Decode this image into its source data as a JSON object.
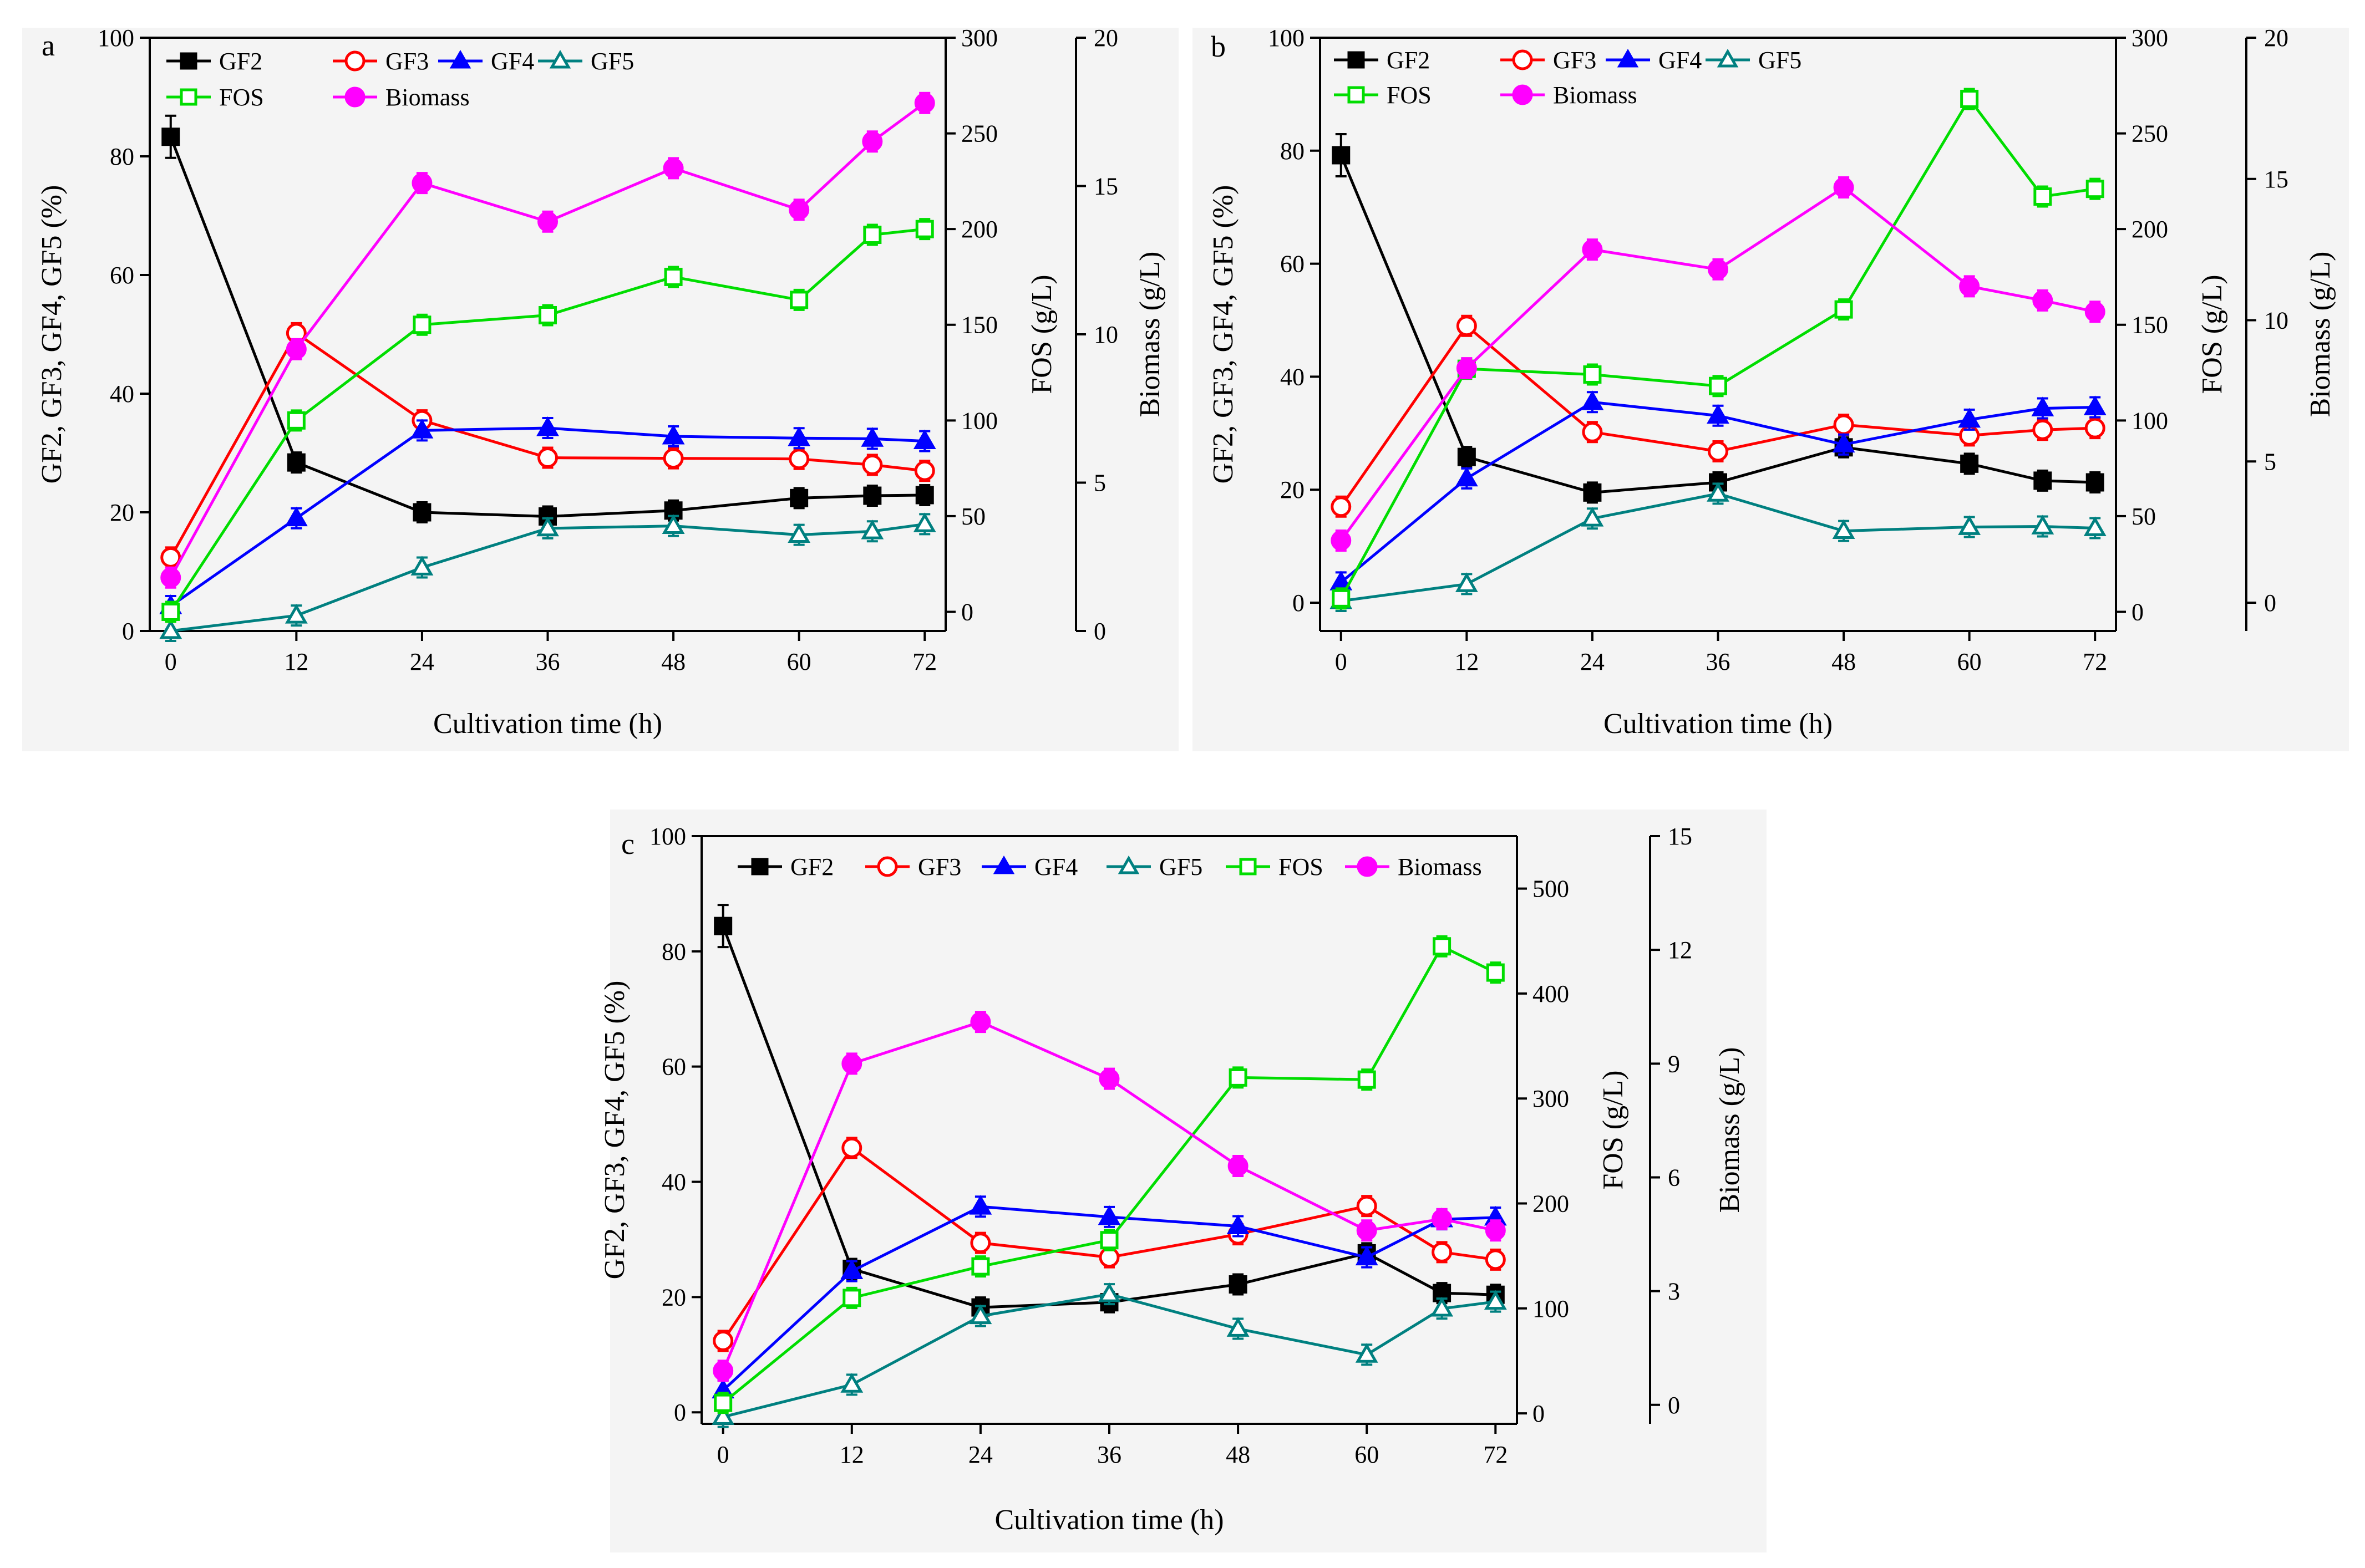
{
  "chart_data": [
    {
      "panel_label": "a",
      "type": "line",
      "xlabel": "Cultivation time (h)",
      "x_ticks": [
        "0",
        "12",
        "24",
        "36",
        "48",
        "60",
        "72"
      ],
      "xlim": [
        -2,
        74
      ],
      "y1label": "GF2, GF3, GF4, GF5 (%)",
      "y1lim": [
        0,
        100
      ],
      "y1_ticks": [
        "0",
        "20",
        "40",
        "60",
        "80",
        "100"
      ],
      "y2label": "FOS (g/L)",
      "y2lim": [
        -10,
        300
      ],
      "y2_ticks": [
        "0",
        "50",
        "100",
        "150",
        "200",
        "250",
        "300"
      ],
      "y3label": "Biomass (g/L)",
      "y3lim": [
        0,
        20
      ],
      "y3_ticks": [
        "0",
        "5",
        "10",
        "15",
        "20"
      ],
      "series": [
        {
          "name": "GF2",
          "axis": "y1",
          "marker": "square",
          "filled": true,
          "color": "#000000",
          "x": [
            0,
            12,
            24,
            36,
            48,
            60,
            67,
            72
          ],
          "y": [
            83.3,
            28.4,
            20.0,
            19.3,
            20.3,
            22.4,
            22.8,
            22.9
          ]
        },
        {
          "name": "GF3",
          "axis": "y1",
          "marker": "circle",
          "filled": false,
          "color": "#FF0000",
          "x": [
            0,
            12,
            24,
            36,
            48,
            60,
            67,
            72
          ],
          "y": [
            12.4,
            50.2,
            35.5,
            29.2,
            29.1,
            29.0,
            28.0,
            27.0
          ]
        },
        {
          "name": "GF4",
          "axis": "y1",
          "marker": "triangle",
          "filled": true,
          "color": "#0000FF",
          "x": [
            0,
            12,
            24,
            36,
            48,
            60,
            67,
            72
          ],
          "y": [
            4.2,
            19.0,
            33.8,
            34.2,
            32.8,
            32.5,
            32.4,
            32.0
          ]
        },
        {
          "name": "GF5",
          "axis": "y1",
          "marker": "triangle",
          "filled": false,
          "color": "#008080",
          "x": [
            0,
            12,
            24,
            36,
            48,
            60,
            67,
            72
          ],
          "y": [
            0.0,
            2.6,
            10.7,
            17.3,
            17.7,
            16.2,
            16.8,
            18.0
          ]
        },
        {
          "name": "FOS",
          "axis": "y2",
          "marker": "square",
          "filled": false,
          "color": "#00DD00",
          "x": [
            0,
            12,
            24,
            36,
            48,
            60,
            67,
            72
          ],
          "y": [
            0,
            100,
            150,
            155,
            175,
            163,
            197,
            200
          ]
        },
        {
          "name": "Biomass",
          "axis": "y3",
          "marker": "circle",
          "filled": true,
          "color": "#FF00FF",
          "x": [
            0,
            12,
            24,
            36,
            48,
            60,
            67,
            72
          ],
          "y": [
            1.8,
            9.5,
            15.1,
            13.8,
            15.6,
            14.2,
            16.5,
            17.8
          ]
        }
      ],
      "legend_rows": [
        [
          "GF2",
          "GF3",
          "GF4",
          "GF5"
        ],
        [
          "FOS",
          "Biomass"
        ]
      ]
    },
    {
      "panel_label": "b",
      "type": "line",
      "xlabel": "Cultivation time (h)",
      "x_ticks": [
        "0",
        "12",
        "24",
        "36",
        "48",
        "60",
        "72"
      ],
      "xlim": [
        -2,
        74
      ],
      "y1label": "GF2, GF3, GF4, GF5 (%)",
      "y1lim": [
        -5,
        100
      ],
      "y1_ticks": [
        "0",
        "20",
        "40",
        "60",
        "80",
        "100"
      ],
      "y2label": "FOS (g/L)",
      "y2lim": [
        -10,
        300
      ],
      "y2_ticks": [
        "0",
        "50",
        "100",
        "150",
        "200",
        "250",
        "300"
      ],
      "y3label": "Biomass (g/L)",
      "y3lim": [
        -1,
        20
      ],
      "y3_ticks": [
        "0",
        "5",
        "10",
        "15",
        "20"
      ],
      "series": [
        {
          "name": "GF2",
          "axis": "y1",
          "marker": "square",
          "filled": true,
          "color": "#000000",
          "x": [
            0,
            12,
            24,
            36,
            48,
            60,
            67,
            72
          ],
          "y": [
            79.2,
            25.8,
            19.5,
            21.3,
            27.5,
            24.6,
            21.6,
            21.3
          ]
        },
        {
          "name": "GF3",
          "axis": "y1",
          "marker": "circle",
          "filled": false,
          "color": "#FF0000",
          "x": [
            0,
            12,
            24,
            36,
            48,
            60,
            67,
            72
          ],
          "y": [
            17.0,
            49.0,
            30.2,
            26.8,
            31.5,
            29.6,
            30.6,
            30.9
          ]
        },
        {
          "name": "GF4",
          "axis": "y1",
          "marker": "triangle",
          "filled": true,
          "color": "#0000FF",
          "x": [
            0,
            12,
            24,
            36,
            48,
            60,
            67,
            72
          ],
          "y": [
            3.6,
            22.0,
            35.5,
            33.1,
            28.0,
            32.4,
            34.4,
            34.6
          ]
        },
        {
          "name": "GF5",
          "axis": "y1",
          "marker": "triangle",
          "filled": false,
          "color": "#008080",
          "x": [
            0,
            12,
            24,
            36,
            48,
            60,
            67,
            72
          ],
          "y": [
            0.3,
            3.3,
            14.9,
            19.3,
            12.7,
            13.4,
            13.5,
            13.2
          ]
        },
        {
          "name": "FOS",
          "axis": "y2",
          "marker": "square",
          "filled": false,
          "color": "#00DD00",
          "x": [
            0,
            12,
            24,
            36,
            48,
            60,
            67,
            72
          ],
          "y": [
            7,
            127,
            124,
            118,
            158,
            268,
            217,
            221
          ]
        },
        {
          "name": "Biomass",
          "axis": "y3",
          "marker": "circle",
          "filled": true,
          "color": "#FF00FF",
          "x": [
            0,
            12,
            24,
            36,
            48,
            60,
            67,
            72
          ],
          "y": [
            2.2,
            8.3,
            12.5,
            11.8,
            14.7,
            11.2,
            10.7,
            10.3
          ]
        }
      ],
      "legend_rows": [
        [
          "GF2",
          "GF3",
          "GF4",
          "GF5"
        ],
        [
          "FOS",
          "Biomass"
        ]
      ]
    },
    {
      "panel_label": "c",
      "type": "line",
      "xlabel": "Cultivation time (h)",
      "x_ticks": [
        "0",
        "12",
        "24",
        "36",
        "48",
        "60",
        "72"
      ],
      "xlim": [
        -2,
        74
      ],
      "y1label": "GF2, GF3, GF4, GF5 (%)",
      "y1lim": [
        -2,
        100
      ],
      "y1_ticks": [
        "0",
        "20",
        "40",
        "60",
        "80",
        "100"
      ],
      "y2label": "FOS (g/L)",
      "y2lim": [
        -10,
        550
      ],
      "y2_ticks": [
        "0",
        "100",
        "200",
        "300",
        "400",
        "500"
      ],
      "y3label": "Biomass (g/L)",
      "y3lim": [
        -0.5,
        15
      ],
      "y3_ticks": [
        "0",
        "3",
        "6",
        "9",
        "12",
        "15"
      ],
      "series": [
        {
          "name": "GF2",
          "axis": "y1",
          "marker": "square",
          "filled": true,
          "color": "#000000",
          "x": [
            0,
            12,
            24,
            36,
            48,
            60,
            67,
            72
          ],
          "y": [
            84.4,
            24.9,
            18.2,
            19.1,
            22.2,
            27.6,
            20.7,
            20.4
          ]
        },
        {
          "name": "GF3",
          "axis": "y1",
          "marker": "circle",
          "filled": false,
          "color": "#FF0000",
          "x": [
            0,
            12,
            24,
            36,
            48,
            60,
            67,
            72
          ],
          "y": [
            12.4,
            45.9,
            29.4,
            26.9,
            30.9,
            35.8,
            27.8,
            26.5
          ]
        },
        {
          "name": "GF4",
          "axis": "y1",
          "marker": "triangle",
          "filled": true,
          "color": "#0000FF",
          "x": [
            0,
            12,
            24,
            36,
            48,
            60,
            67,
            72
          ],
          "y": [
            3.8,
            24.5,
            35.7,
            33.9,
            32.3,
            26.9,
            33.5,
            33.8
          ]
        },
        {
          "name": "GF5",
          "axis": "y1",
          "marker": "triangle",
          "filled": false,
          "color": "#008080",
          "x": [
            0,
            12,
            24,
            36,
            48,
            60,
            67,
            72
          ],
          "y": [
            -0.8,
            4.8,
            16.7,
            20.5,
            14.5,
            10.0,
            18.0,
            19.2
          ]
        },
        {
          "name": "FOS",
          "axis": "y2",
          "marker": "square",
          "filled": false,
          "color": "#00DD00",
          "x": [
            0,
            12,
            24,
            36,
            48,
            60,
            67,
            72
          ],
          "y": [
            10,
            110,
            140,
            165,
            320,
            318,
            445,
            420
          ]
        },
        {
          "name": "Biomass",
          "axis": "y3",
          "marker": "circle",
          "filled": true,
          "color": "#FF00FF",
          "x": [
            0,
            12,
            24,
            36,
            48,
            60,
            67,
            72
          ],
          "y": [
            0.9,
            9.0,
            10.1,
            8.6,
            6.3,
            4.6,
            4.9,
            4.6
          ]
        }
      ],
      "legend_rows": [
        [
          "GF2",
          "GF3",
          "GF4",
          "GF5",
          "FOS",
          "Biomass"
        ]
      ]
    }
  ]
}
